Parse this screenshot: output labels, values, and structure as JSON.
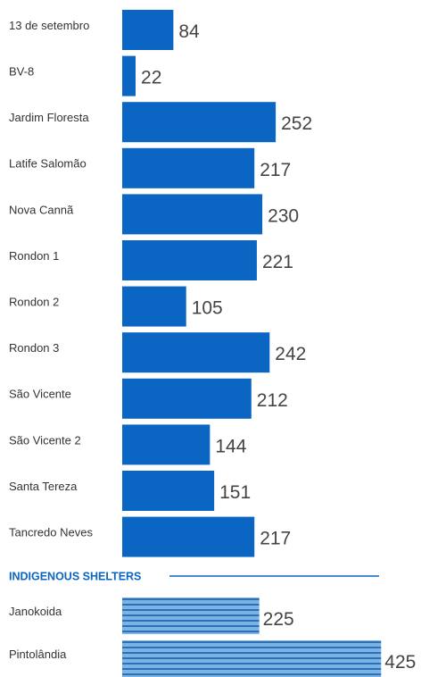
{
  "chart_data": {
    "type": "bar",
    "groups": [
      {
        "categories": [
          "13 de setembro",
          "BV-8",
          "Jardim Floresta",
          "Latife Salomão",
          "Nova Cannã",
          "Rondon 1",
          "Rondon 2",
          "Rondon 3",
          "São Vicente",
          "São Vicente 2",
          "Santa Tereza",
          "Tancredo Neves"
        ],
        "values": [
          84,
          22,
          252,
          217,
          230,
          221,
          105,
          242,
          212,
          144,
          151,
          217
        ],
        "color": "#0a66c2"
      },
      {
        "name": "INDIGENOUS SHELTERS",
        "categories": [
          "Janokoida",
          "Pintolândia"
        ],
        "values": [
          225,
          425
        ],
        "color": "#7ab3e6",
        "stripe_color": "#2f6fb3"
      }
    ]
  }
}
